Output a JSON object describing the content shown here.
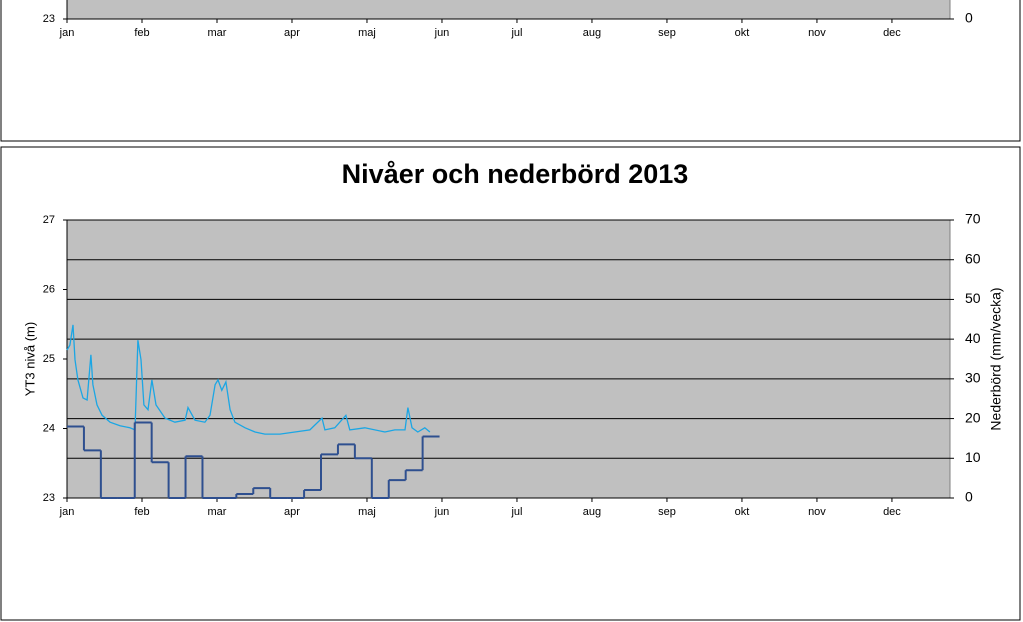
{
  "chart_data": [
    {
      "type": "line",
      "xlim": [
        0,
        365
      ],
      "xticks": [
        {
          "value": 0,
          "label": "jan"
        },
        {
          "value": 31,
          "label": "feb"
        },
        {
          "value": 62,
          "label": "mar"
        },
        {
          "value": 93,
          "label": "apr"
        },
        {
          "value": 124,
          "label": "maj"
        },
        {
          "value": 155,
          "label": "jun"
        },
        {
          "value": 186,
          "label": "jul"
        },
        {
          "value": 217,
          "label": "aug"
        },
        {
          "value": 248,
          "label": "sep"
        },
        {
          "value": 279,
          "label": "okt"
        },
        {
          "value": 310,
          "label": "nov"
        },
        {
          "value": 341,
          "label": "dec"
        }
      ],
      "yticks": [
        23
      ],
      "y2ticks": [
        0
      ],
      "plot_background": "#c0c0c0"
    },
    {
      "type": "line",
      "title": "Nivåer och nederbörd 2013",
      "ylabel": "YT3 nivå (m)",
      "y2label": "Nederbörd (mm/vecka)",
      "xlim": [
        0,
        365
      ],
      "xticks": [
        {
          "value": 0,
          "label": "jan"
        },
        {
          "value": 31,
          "label": "feb"
        },
        {
          "value": 62,
          "label": "mar"
        },
        {
          "value": 93,
          "label": "apr"
        },
        {
          "value": 124,
          "label": "maj"
        },
        {
          "value": 155,
          "label": "jun"
        },
        {
          "value": 186,
          "label": "jul"
        },
        {
          "value": 217,
          "label": "aug"
        },
        {
          "value": 248,
          "label": "sep"
        },
        {
          "value": 279,
          "label": "okt"
        },
        {
          "value": 310,
          "label": "nov"
        },
        {
          "value": 341,
          "label": "dec"
        }
      ],
      "ylim": [
        23,
        27
      ],
      "yticks": [
        23,
        24,
        25,
        26,
        27
      ],
      "y2lim": [
        0,
        70
      ],
      "y2ticks": [
        0,
        10,
        20,
        30,
        40,
        50,
        60,
        70
      ],
      "grid": "y2",
      "plot_background": "#c0c0c0",
      "series": [
        {
          "color": "#1ba6e4",
          "x": [
            0,
            1.2,
            2.5,
            3.3,
            4.5,
            6.6,
            8.3,
            9.9,
            10.7,
            12.4,
            14.5,
            17.8,
            21.9,
            26,
            28.1,
            29.3,
            30.6,
            31.8,
            33.5,
            35.1,
            36.8,
            40.5,
            44.6,
            48.8,
            50,
            52.9,
            57,
            59.1,
            61.2,
            62.4,
            64,
            65.7,
            67.4,
            69.4,
            73.6,
            77.7,
            81.8,
            88,
            94.2,
            100.4,
            105.4,
            106.6,
            110.7,
            115.3,
            116.9,
            123.1,
            131.4,
            135.5,
            139.7,
            140.9,
            142.6,
            145,
            147.9,
            150
          ],
          "values": [
            25.13,
            25.2,
            25.49,
            24.99,
            24.7,
            24.44,
            24.41,
            25.06,
            24.63,
            24.34,
            24.19,
            24.09,
            24.04,
            24.01,
            23.98,
            25.27,
            24.99,
            24.34,
            24.27,
            24.7,
            24.34,
            24.15,
            24.09,
            24.12,
            24.3,
            24.12,
            24.09,
            24.19,
            24.63,
            24.7,
            24.55,
            24.67,
            24.27,
            24.09,
            24.01,
            23.95,
            23.92,
            23.92,
            23.95,
            23.98,
            24.15,
            23.98,
            24.01,
            24.19,
            23.98,
            24.01,
            23.95,
            23.98,
            23.98,
            24.3,
            24.01,
            23.95,
            24.01,
            23.95
          ]
        },
        {
          "color": "#2e4f8f",
          "axis": "y2",
          "step": true,
          "x": [
            0,
            7,
            14,
            21,
            28,
            35,
            42,
            49,
            56,
            63,
            70,
            77,
            84,
            91,
            98,
            105,
            112,
            119,
            126,
            133,
            140,
            147
          ],
          "values": [
            18,
            12,
            0,
            0,
            19,
            9,
            0,
            10.5,
            0,
            0,
            1,
            2.5,
            0,
            0,
            2,
            11,
            13.5,
            10,
            0,
            4.5,
            7,
            15.5
          ]
        }
      ]
    }
  ]
}
